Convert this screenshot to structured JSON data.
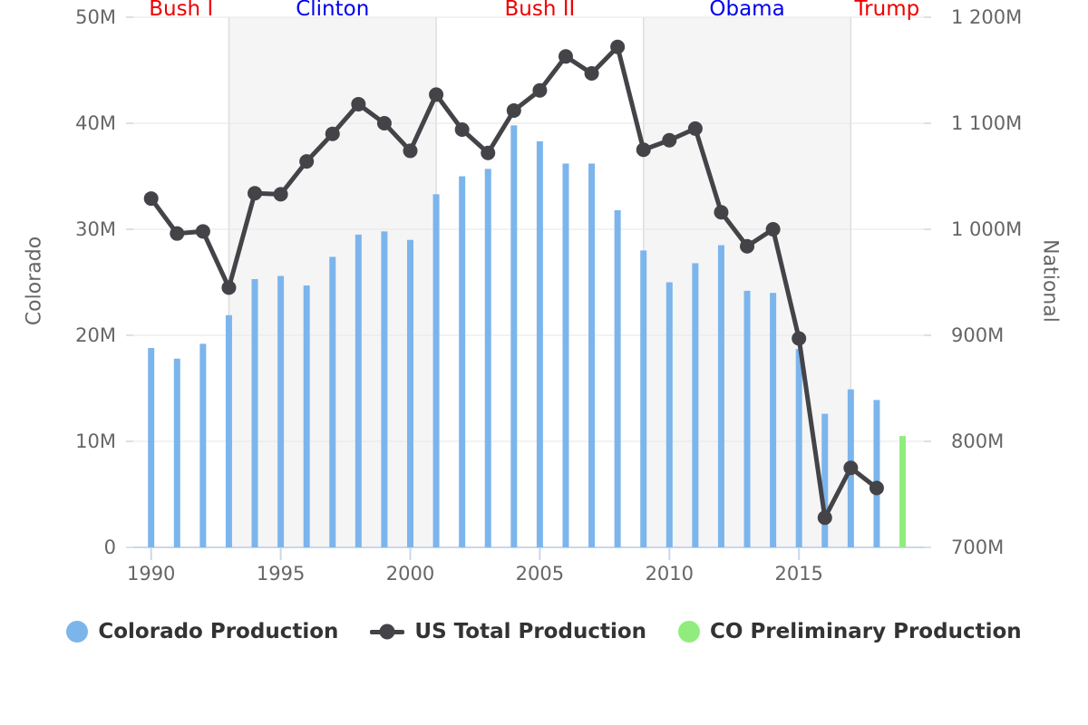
{
  "chart_data": {
    "type": "bar+line",
    "title": "",
    "x": [
      1990,
      1991,
      1992,
      1993,
      1994,
      1995,
      1996,
      1997,
      1998,
      1999,
      2000,
      2001,
      2002,
      2003,
      2004,
      2005,
      2006,
      2007,
      2008,
      2009,
      2010,
      2011,
      2012,
      2013,
      2014,
      2015,
      2016,
      2017,
      2018
    ],
    "series": [
      {
        "name": "Colorado Production",
        "type": "bar",
        "axis": "left",
        "color": "#7cb5ec",
        "unit": "M",
        "values": [
          18.8,
          17.8,
          19.2,
          21.9,
          25.3,
          25.6,
          24.7,
          27.4,
          29.5,
          29.8,
          29.0,
          33.3,
          35.0,
          35.7,
          39.8,
          38.3,
          36.2,
          36.2,
          31.8,
          28.0,
          25.0,
          26.8,
          28.5,
          24.2,
          24.0,
          18.7,
          12.6,
          14.9,
          13.9
        ]
      },
      {
        "name": "US Total Production",
        "type": "line",
        "axis": "right",
        "color": "#434348",
        "unit": "M",
        "values": [
          1029,
          996,
          998,
          945,
          1034,
          1033,
          1064,
          1090,
          1118,
          1100,
          1074,
          1127,
          1094,
          1072,
          1112,
          1131,
          1163,
          1147,
          1172,
          1075,
          1084,
          1095,
          1016,
          984,
          1000,
          897,
          728,
          775,
          756
        ]
      },
      {
        "name": "CO Preliminary Production",
        "type": "bar",
        "axis": "left",
        "color": "#90ed7d",
        "unit": "M",
        "x": [
          2019
        ],
        "values": [
          10.5
        ]
      }
    ],
    "y_left": {
      "title": "Colorado",
      "min": 0,
      "max": 50,
      "tick_labels": [
        "0",
        "10M",
        "20M",
        "30M",
        "40M",
        "50M"
      ]
    },
    "y_right": {
      "title": "National",
      "min": 700,
      "max": 1200,
      "tick_labels": [
        "700M",
        "800M",
        "900M",
        "1 000M",
        "1 100M",
        "1 200M"
      ]
    },
    "x_axis": {
      "min": 1989.3,
      "max": 2019.8,
      "tick_years": [
        1990,
        1995,
        2000,
        2005,
        2010,
        2015
      ],
      "tick_labels": [
        "1990",
        "1995",
        "2000",
        "2005",
        "2010",
        "2015"
      ]
    },
    "presidents": [
      {
        "name": "Bush I",
        "color": "#ee0000",
        "start_year": 1989.3,
        "end_year": 1993,
        "shaded": false
      },
      {
        "name": "Clinton",
        "color": "#0000ee",
        "start_year": 1993,
        "end_year": 2001,
        "shaded": true
      },
      {
        "name": "Bush II",
        "color": "#ee0000",
        "start_year": 2001,
        "end_year": 2009,
        "shaded": false
      },
      {
        "name": "Obama",
        "color": "#0000ee",
        "start_year": 2009,
        "end_year": 2017,
        "shaded": true
      },
      {
        "name": "Trump",
        "color": "#ee0000",
        "start_year": 2017,
        "end_year": 2019.8,
        "shaded": false
      }
    ],
    "style": {
      "band_fill": "#f5f5f5",
      "grid_color": "#e6e6e6",
      "axis_line_color": "#ccd6eb",
      "boundary_line_color": "#dedede",
      "tick_label_color": "#666666",
      "axis_title_color": "#666666",
      "legend_text_color": "#333333"
    },
    "legend": {
      "position": "bottom",
      "items": [
        "Colorado Production",
        "US Total Production",
        "CO Preliminary Production"
      ]
    }
  }
}
